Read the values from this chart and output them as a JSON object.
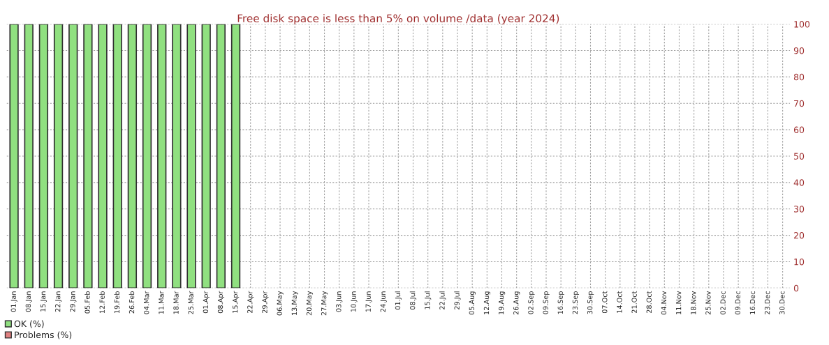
{
  "chart_data": {
    "type": "bar",
    "title": "Free disk space is less than 5% on volume /data (year 2024)",
    "stacked": true,
    "categories": [
      "01.Jan",
      "08.Jan",
      "15.Jan",
      "22.Jan",
      "29.Jan",
      "05.Feb",
      "12.Feb",
      "19.Feb",
      "26.Feb",
      "04.Mar",
      "11.Mar",
      "18.Mar",
      "25.Mar",
      "01.Apr",
      "08.Apr",
      "15.Apr",
      "22.Apr",
      "29.Apr",
      "06.May",
      "13.May",
      "20.May",
      "27.May",
      "03.Jun",
      "10.Jun",
      "17.Jun",
      "24.Jun",
      "01.Jul",
      "08.Jul",
      "15.Jul",
      "22.Jul",
      "29.Jul",
      "05.Aug",
      "12.Aug",
      "19.Aug",
      "26.Aug",
      "02.Sep",
      "09.Sep",
      "16.Sep",
      "23.Sep",
      "30.Sep",
      "07.Oct",
      "14.Oct",
      "21.Oct",
      "28.Oct",
      "04.Nov",
      "11.Nov",
      "18.Nov",
      "25.Nov",
      "02.Dec",
      "09.Dec",
      "16.Dec",
      "23.Dec",
      "30.Dec"
    ],
    "series": [
      {
        "name": "OK (%)",
        "color": "#90e080",
        "values": [
          100,
          100,
          100,
          100,
          100,
          100,
          100,
          100,
          100,
          100,
          100,
          100,
          100,
          100,
          100,
          100,
          null,
          null,
          null,
          null,
          null,
          null,
          null,
          null,
          null,
          null,
          null,
          null,
          null,
          null,
          null,
          null,
          null,
          null,
          null,
          null,
          null,
          null,
          null,
          null,
          null,
          null,
          null,
          null,
          null,
          null,
          null,
          null,
          null,
          null,
          null,
          null,
          null
        ]
      },
      {
        "name": "Problems (%)",
        "color": "#e08080",
        "values": [
          0,
          0,
          0,
          0,
          0,
          0,
          0,
          0,
          0,
          0,
          0,
          0,
          0,
          0,
          0,
          0,
          null,
          null,
          null,
          null,
          null,
          null,
          null,
          null,
          null,
          null,
          null,
          null,
          null,
          null,
          null,
          null,
          null,
          null,
          null,
          null,
          null,
          null,
          null,
          null,
          null,
          null,
          null,
          null,
          null,
          null,
          null,
          null,
          null,
          null,
          null,
          null,
          null
        ]
      }
    ],
    "ylim": [
      0,
      100
    ],
    "yticks": [
      0,
      10,
      20,
      30,
      40,
      50,
      60,
      70,
      80,
      90,
      100
    ],
    "grid": true,
    "legend": "bottom left"
  }
}
